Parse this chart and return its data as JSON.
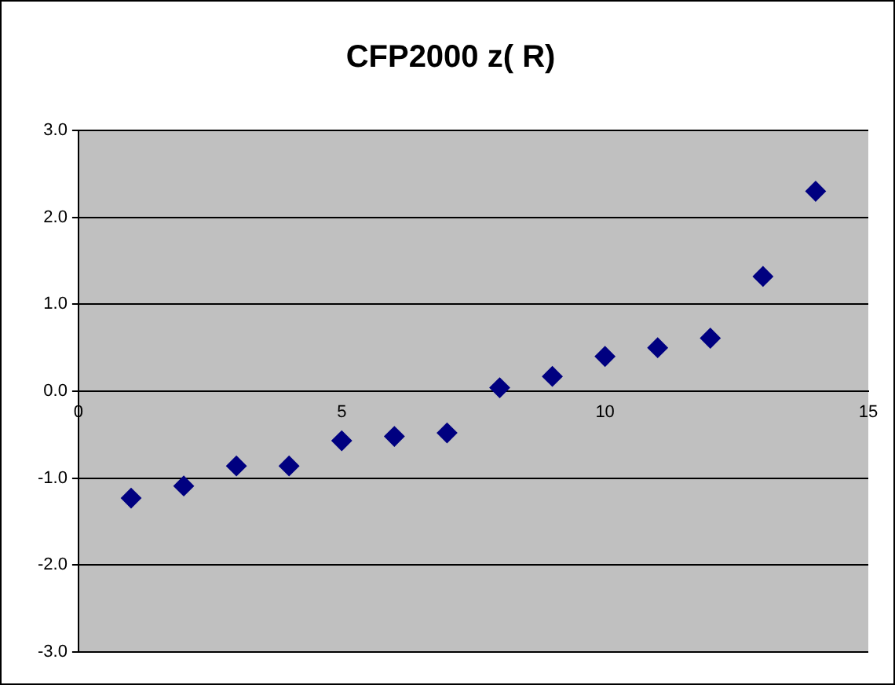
{
  "chart_data": {
    "type": "scatter",
    "title": "CFP2000 z( R)",
    "x": [
      1,
      2,
      3,
      4,
      5,
      6,
      7,
      8,
      9,
      10,
      11,
      12,
      13,
      14
    ],
    "series": [
      {
        "color": "#000080",
        "values": [
          -1.23,
          -1.09,
          -0.86,
          -0.86,
          -0.57,
          -0.52,
          -0.48,
          0.04,
          0.17,
          0.4,
          0.5,
          0.61,
          1.32,
          2.3
        ]
      }
    ],
    "xlim": [
      0,
      15
    ],
    "xticks": [
      0,
      5,
      10,
      15
    ],
    "ylim": [
      -3,
      3
    ],
    "yticks": [
      {
        "value": -3,
        "label": "-3.0"
      },
      {
        "value": -2,
        "label": "-2.0"
      },
      {
        "value": -1,
        "label": "-1.0"
      },
      {
        "value": 0,
        "label": "0.0"
      },
      {
        "value": 1,
        "label": "1.0"
      },
      {
        "value": 2,
        "label": "2.0"
      },
      {
        "value": 3,
        "label": "3.0"
      }
    ],
    "grid": "y",
    "legend": false,
    "marker": "diamond"
  }
}
